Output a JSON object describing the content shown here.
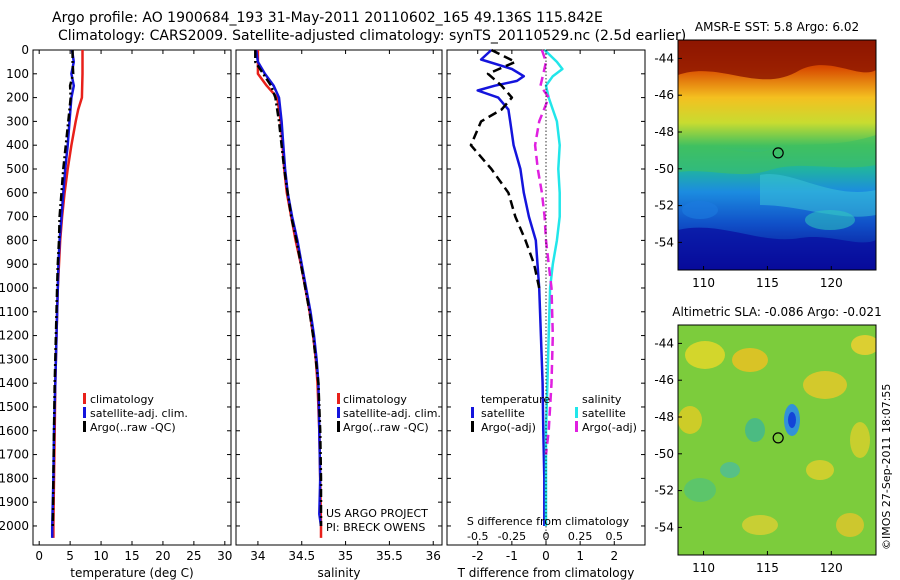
{
  "figure": {
    "title_line1": "Argo profile: AO 1900684_193 31-May-2011 20110602_165 49.136S 115.842E",
    "title_line2": "Climatology: CARS2009. Satellite-adjusted climatology: synTS_20110529.nc (2.5d earlier)",
    "watermark": "©IMOS 27-Sep-2011 18:07:55",
    "project_line1": "US ARGO PROJECT",
    "project_line2": "PI: BRECK OWENS"
  },
  "colors": {
    "climatology": "#e8201a",
    "satellite": "#1414dc",
    "argo": "#000000",
    "sal_satellite": "#21e6ea",
    "sal_argo": "#e020e0"
  },
  "chart_data": [
    {
      "type": "line",
      "xlabel": "temperature (deg C)",
      "ylabel": "",
      "xlim": [
        -1,
        31
      ],
      "ylim": [
        2080,
        0
      ],
      "xticks": [
        0,
        5,
        10,
        15,
        20,
        25,
        30
      ],
      "yticks": [
        0,
        100,
        200,
        300,
        400,
        500,
        600,
        700,
        800,
        900,
        1000,
        1100,
        1200,
        1300,
        1400,
        1500,
        1600,
        1700,
        1800,
        1900,
        2000
      ],
      "legend": [
        "climatology",
        "satellite-adj. clim.",
        "Argo(..raw -QC)"
      ],
      "legend_position": "lower-right",
      "series": [
        {
          "name": "climatology",
          "color_key": "climatology",
          "dash": "solid",
          "depth": [
            0,
            100,
            200,
            250,
            300,
            400,
            500,
            600,
            700,
            800,
            900,
            1000,
            1200,
            1400,
            1600,
            1800,
            2000,
            2050
          ],
          "values": [
            7.0,
            7.0,
            6.9,
            6.3,
            5.9,
            5.2,
            4.6,
            4.1,
            3.7,
            3.4,
            3.2,
            3.0,
            2.8,
            2.6,
            2.5,
            2.4,
            2.3,
            2.3
          ]
        },
        {
          "name": "satellite-adj. clim.",
          "color_key": "satellite",
          "dash": "solid",
          "depth": [
            0,
            50,
            100,
            150,
            200,
            300,
            400,
            500,
            600,
            700,
            800,
            900,
            1000,
            1200,
            1400,
            1600,
            1800,
            2000,
            2050
          ],
          "values": [
            5.3,
            5.6,
            5.2,
            5.6,
            5.2,
            4.9,
            4.6,
            4.2,
            3.9,
            3.6,
            3.3,
            3.1,
            3.0,
            2.8,
            2.6,
            2.4,
            2.3,
            2.1,
            2.1
          ]
        },
        {
          "name": "Argo(..raw -QC)",
          "color_key": "argo",
          "dash": "dashdot",
          "depth": [
            0,
            50,
            100,
            150,
            200,
            300,
            400,
            500,
            600,
            700,
            800,
            900,
            1000,
            1200,
            1400,
            1600,
            1800,
            2000
          ],
          "values": [
            5.4,
            5.4,
            5.5,
            5.0,
            5.1,
            4.7,
            4.3,
            3.9,
            3.6,
            3.3,
            3.2,
            3.0,
            2.9,
            2.7,
            2.5,
            2.4,
            2.3,
            2.2
          ]
        }
      ]
    },
    {
      "type": "line",
      "xlabel": "salinity",
      "ylabel": "",
      "xlim": [
        33.75,
        36.1
      ],
      "ylim": [
        2080,
        0
      ],
      "xticks": [
        34,
        34.5,
        35,
        35.5,
        36
      ],
      "xticklabels": [
        "34",
        "34.5",
        "35",
        "35.5",
        "36"
      ],
      "legend": [
        "climatology",
        "satellite-adj. clim.",
        "Argo(..raw -QC)"
      ],
      "legend_position": "lower-right",
      "series": [
        {
          "name": "climatology",
          "color_key": "climatology",
          "dash": "solid",
          "depth": [
            0,
            100,
            150,
            200,
            300,
            400,
            500,
            600,
            700,
            800,
            900,
            1000,
            1100,
            1200,
            1300,
            1400,
            1600,
            1800,
            2000,
            2050
          ],
          "values": [
            34.0,
            34.0,
            34.1,
            34.22,
            34.26,
            34.28,
            34.3,
            34.33,
            34.38,
            34.43,
            34.49,
            34.54,
            34.59,
            34.63,
            34.66,
            34.68,
            34.7,
            34.71,
            34.72,
            34.72
          ]
        },
        {
          "name": "satellite-adj. clim.",
          "color_key": "satellite",
          "dash": "solid",
          "depth": [
            0,
            50,
            100,
            150,
            200,
            300,
            400,
            500,
            600,
            700,
            800,
            900,
            1000,
            1100,
            1200,
            1300,
            1400,
            1600,
            1800,
            1950,
            2000
          ],
          "values": [
            33.98,
            34.0,
            34.08,
            34.18,
            34.24,
            34.27,
            34.29,
            34.31,
            34.34,
            34.39,
            34.45,
            34.5,
            34.55,
            34.6,
            34.64,
            34.67,
            34.69,
            34.7,
            34.71,
            34.7,
            34.72
          ]
        },
        {
          "name": "Argo(..raw -QC)",
          "color_key": "argo",
          "dash": "dashdot",
          "depth": [
            0,
            50,
            100,
            150,
            200,
            300,
            400,
            500,
            600,
            700,
            800,
            900,
            1000,
            1100,
            1200,
            1300,
            1400,
            1600,
            1800,
            2000
          ],
          "values": [
            33.97,
            33.97,
            34.06,
            34.15,
            34.2,
            34.24,
            34.27,
            34.3,
            34.34,
            34.38,
            34.44,
            34.49,
            34.54,
            34.59,
            34.63,
            34.66,
            34.69,
            34.71,
            34.72,
            34.72
          ]
        }
      ]
    },
    {
      "type": "line",
      "xlabel": "T difference from climatology",
      "xlabel_secondary": "S difference from climatology",
      "ylabel": "",
      "xlim": [
        -2.9,
        2.9
      ],
      "ylim": [
        2080,
        0
      ],
      "xticks": [
        -2,
        -1,
        0,
        1,
        2
      ],
      "xticks_secondary": [
        -0.5,
        -0.25,
        0,
        0.25,
        0.5
      ],
      "legend_groups": [
        {
          "title": "temperature",
          "items": [
            "satellite",
            "Argo(-adj)"
          ]
        },
        {
          "title": "salinity",
          "items": [
            "satellite",
            "Argo(-adj)"
          ]
        }
      ],
      "legend_position": "lower-center",
      "series": [
        {
          "name": "temperature satellite",
          "color_key": "satellite",
          "dash": "solid",
          "axis": "T",
          "depth": [
            0,
            40,
            80,
            110,
            130,
            150,
            170,
            200,
            250,
            300,
            400,
            500,
            600,
            700,
            800,
            1000,
            1200,
            1400,
            1600,
            1800,
            2000
          ],
          "values": [
            -1.6,
            -1.9,
            -1.0,
            -0.65,
            -0.85,
            -1.5,
            -2.0,
            -1.4,
            -1.1,
            -1.05,
            -0.95,
            -0.75,
            -0.65,
            -0.5,
            -0.3,
            -0.2,
            -0.15,
            -0.1,
            -0.08,
            -0.05,
            -0.05
          ]
        },
        {
          "name": "temperature Argo(-adj)",
          "color_key": "argo",
          "dash": "dashed",
          "axis": "T",
          "depth": [
            0,
            50,
            100,
            150,
            200,
            250,
            300,
            400,
            500,
            600,
            700,
            800,
            900,
            1000
          ],
          "values": [
            -1.6,
            -0.9,
            -1.7,
            -1.3,
            -1.0,
            -1.3,
            -1.9,
            -2.2,
            -1.6,
            -1.1,
            -0.9,
            -0.6,
            -0.35,
            -0.2
          ]
        },
        {
          "name": "salinity satellite",
          "color_key": "sal_satellite",
          "dash": "solid",
          "axis": "S",
          "depth": [
            0,
            50,
            80,
            110,
            150,
            200,
            300,
            400,
            500,
            600,
            700,
            800,
            900,
            1000,
            1200,
            1400,
            1600,
            1800,
            2000
          ],
          "values": [
            -0.01,
            0.08,
            0.12,
            0.05,
            0.0,
            0.02,
            0.08,
            0.1,
            0.09,
            0.1,
            0.1,
            0.08,
            0.05,
            0.03,
            0.02,
            0.01,
            0.0,
            0.0,
            0.0
          ]
        },
        {
          "name": "salinity Argo(-adj)",
          "color_key": "sal_argo",
          "dash": "dashed",
          "axis": "S",
          "depth": [
            0,
            50,
            100,
            150,
            200,
            300,
            400,
            500,
            600,
            700,
            800,
            900,
            1000,
            1200,
            1400,
            1600,
            1700
          ],
          "values": [
            -0.03,
            0.0,
            -0.02,
            -0.04,
            0.02,
            -0.05,
            -0.08,
            -0.06,
            -0.03,
            -0.01,
            0.0,
            0.02,
            0.04,
            0.05,
            0.04,
            0.02,
            0.0
          ]
        }
      ]
    },
    {
      "type": "heatmap",
      "title": "AMSR-E SST: 5.8 Argo: 6.02",
      "xlim": [
        108,
        123.5
      ],
      "ylim": [
        -55.5,
        -43
      ],
      "xticks": [
        110,
        115,
        120
      ],
      "yticks": [
        -44,
        -46,
        -48,
        -50,
        -52,
        -54
      ],
      "marker": {
        "lon": 115.842,
        "lat": -49.136
      }
    },
    {
      "type": "heatmap",
      "title": "Altimetric SLA: -0.086 Argo: -0.021",
      "xlim": [
        108,
        123.5
      ],
      "ylim": [
        -55.5,
        -43
      ],
      "xticks": [
        110,
        115,
        120
      ],
      "yticks": [
        -44,
        -46,
        -48,
        -50,
        -52,
        -54
      ],
      "marker": {
        "lon": 115.842,
        "lat": -49.136
      }
    }
  ]
}
